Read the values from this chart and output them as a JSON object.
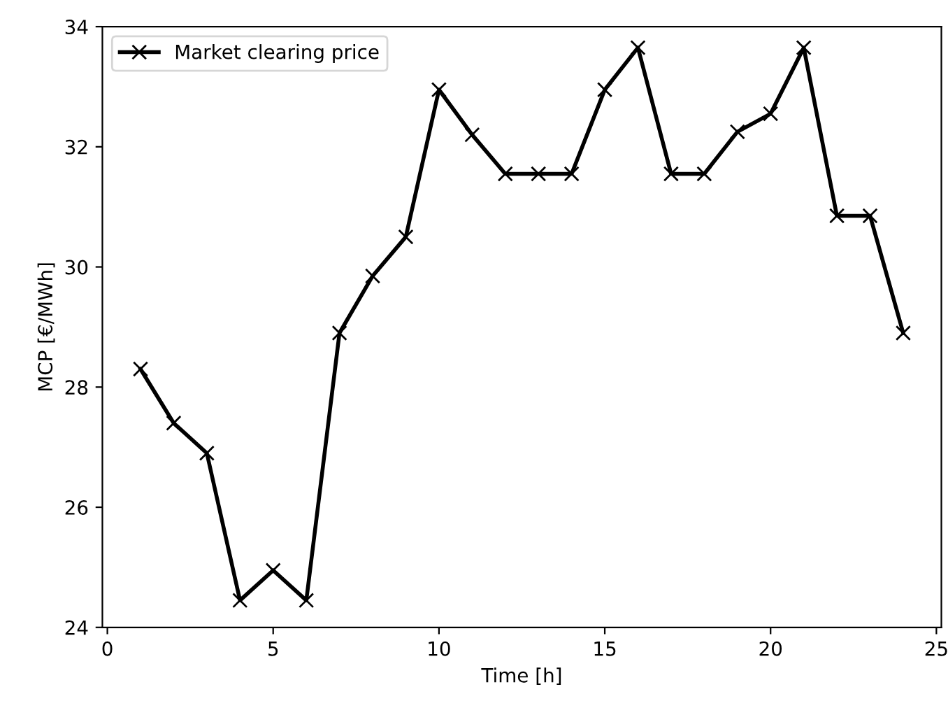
{
  "chart_data": {
    "type": "line",
    "xlabel": "Time [h]",
    "ylabel": "MCP [€/MWh]",
    "x": [
      1,
      2,
      3,
      4,
      5,
      6,
      7,
      8,
      9,
      10,
      11,
      12,
      13,
      14,
      15,
      16,
      17,
      18,
      19,
      20,
      21,
      22,
      23,
      24
    ],
    "series": [
      {
        "name": "Market clearing price",
        "color": "#000000",
        "values": [
          28.3,
          27.4,
          26.9,
          24.45,
          24.95,
          24.45,
          28.9,
          29.85,
          30.5,
          32.95,
          32.2,
          31.55,
          31.55,
          31.55,
          32.95,
          33.65,
          31.55,
          31.55,
          32.25,
          32.55,
          33.65,
          30.85,
          30.85,
          28.9
        ]
      }
    ],
    "xlim": [
      -0.15,
      25.15
    ],
    "ylim": [
      24,
      34
    ],
    "xticks": [
      0,
      5,
      10,
      15,
      20,
      25
    ],
    "yticks": [
      24,
      26,
      28,
      30,
      32,
      34
    ],
    "marker": "cross",
    "line_style": "solid",
    "legend": "top left",
    "grid": false
  }
}
